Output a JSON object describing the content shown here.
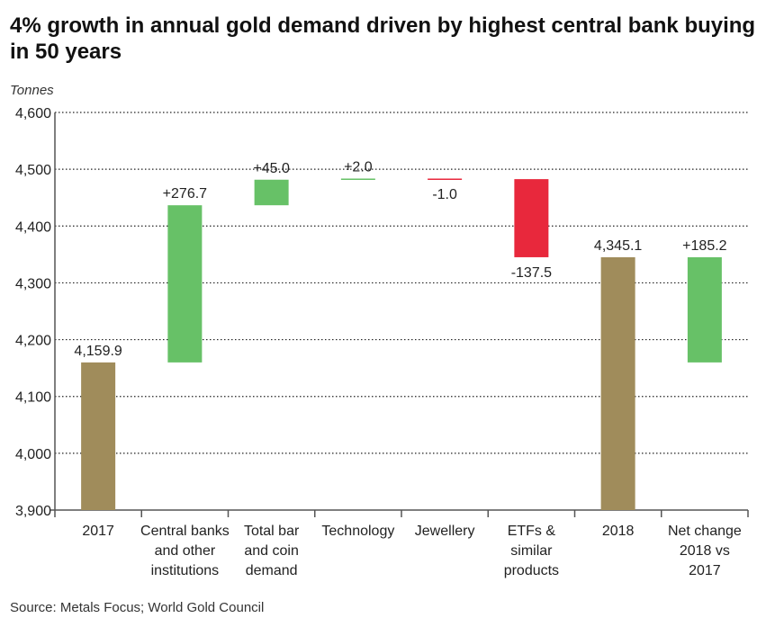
{
  "chart_data": {
    "type": "waterfall",
    "title": "4% growth in annual gold demand driven by highest central bank buying in 50 years",
    "ylabel": "Tonnes",
    "source": "Source: Metals Focus; World Gold Council",
    "ylim": [
      3900,
      4600
    ],
    "yticks": [
      3900,
      4000,
      4100,
      4200,
      4300,
      4400,
      4500,
      4600
    ],
    "ytick_labels": [
      "3,900",
      "4,000",
      "4,100",
      "4,200",
      "4,300",
      "4,400",
      "4,500",
      "4,600"
    ],
    "grid": "horizontal dotted",
    "categories": [
      [
        "2017"
      ],
      [
        "Central banks",
        "and other",
        "institutions"
      ],
      [
        "Total bar",
        "and coin",
        "demand"
      ],
      [
        "Technology"
      ],
      [
        "Jewellery"
      ],
      [
        "ETFs &",
        "similar",
        "products"
      ],
      [
        "2018"
      ],
      [
        "Net change",
        "2018 vs",
        "2017"
      ]
    ],
    "bars": [
      {
        "kind": "total",
        "start": 3900,
        "end": 4159.9,
        "label": "4,159.9"
      },
      {
        "kind": "increase",
        "start": 4159.9,
        "end": 4436.6,
        "label": "+276.7"
      },
      {
        "kind": "increase",
        "start": 4436.6,
        "end": 4481.6,
        "label": "+45.0"
      },
      {
        "kind": "increase",
        "start": 4481.6,
        "end": 4483.6,
        "label": "+2.0"
      },
      {
        "kind": "decrease",
        "start": 4483.6,
        "end": 4482.6,
        "label": "-1.0"
      },
      {
        "kind": "decrease",
        "start": 4482.6,
        "end": 4345.1,
        "label": "-137.5"
      },
      {
        "kind": "total",
        "start": 3900,
        "end": 4345.1,
        "label": "4,345.1"
      },
      {
        "kind": "increase",
        "start": 4159.9,
        "end": 4345.1,
        "label": "+185.2"
      }
    ],
    "colors": {
      "total": "#a08c5b",
      "increase": "#67c167",
      "decrease": "#e8283c"
    }
  }
}
